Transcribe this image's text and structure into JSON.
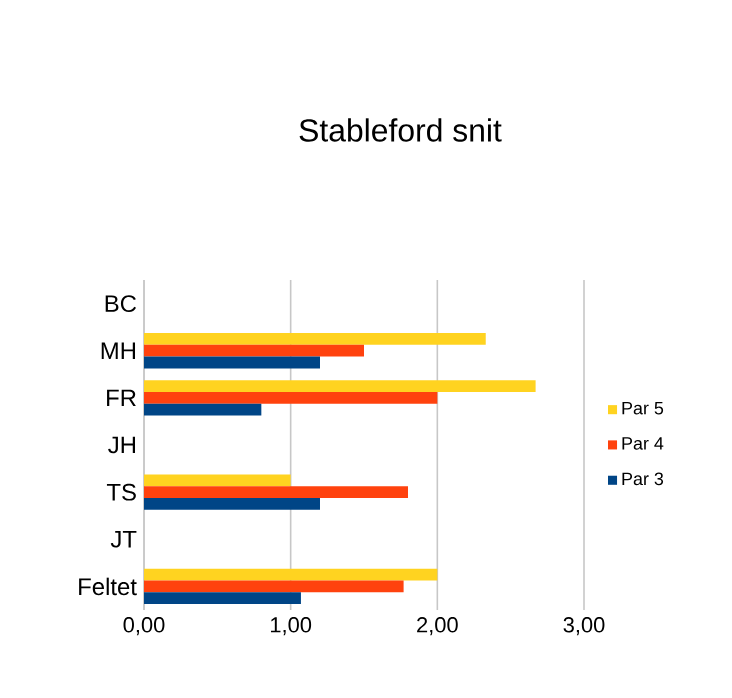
{
  "chart_data": {
    "type": "bar",
    "orientation": "horizontal",
    "title": "Stableford snit",
    "categories": [
      "BC",
      "MH",
      "FR",
      "JH",
      "TS",
      "JT",
      "Feltet"
    ],
    "series": [
      {
        "name": "Par 5",
        "color": "#ffd320",
        "values": [
          null,
          2.33,
          2.67,
          null,
          1.0,
          null,
          2.0
        ]
      },
      {
        "name": "Par 4",
        "color": "#ff420e",
        "values": [
          null,
          1.5,
          2.0,
          null,
          1.8,
          null,
          1.77
        ]
      },
      {
        "name": "Par 3",
        "color": "#004586",
        "values": [
          null,
          1.2,
          0.8,
          null,
          1.2,
          null,
          1.07
        ]
      }
    ],
    "xlim": [
      0,
      3
    ],
    "xticks": [
      {
        "value": 0,
        "label": "0,00"
      },
      {
        "value": 1,
        "label": "1,00"
      },
      {
        "value": 2,
        "label": "2,00"
      },
      {
        "value": 3,
        "label": "3,00"
      }
    ],
    "grid": "x",
    "legend": "right"
  }
}
